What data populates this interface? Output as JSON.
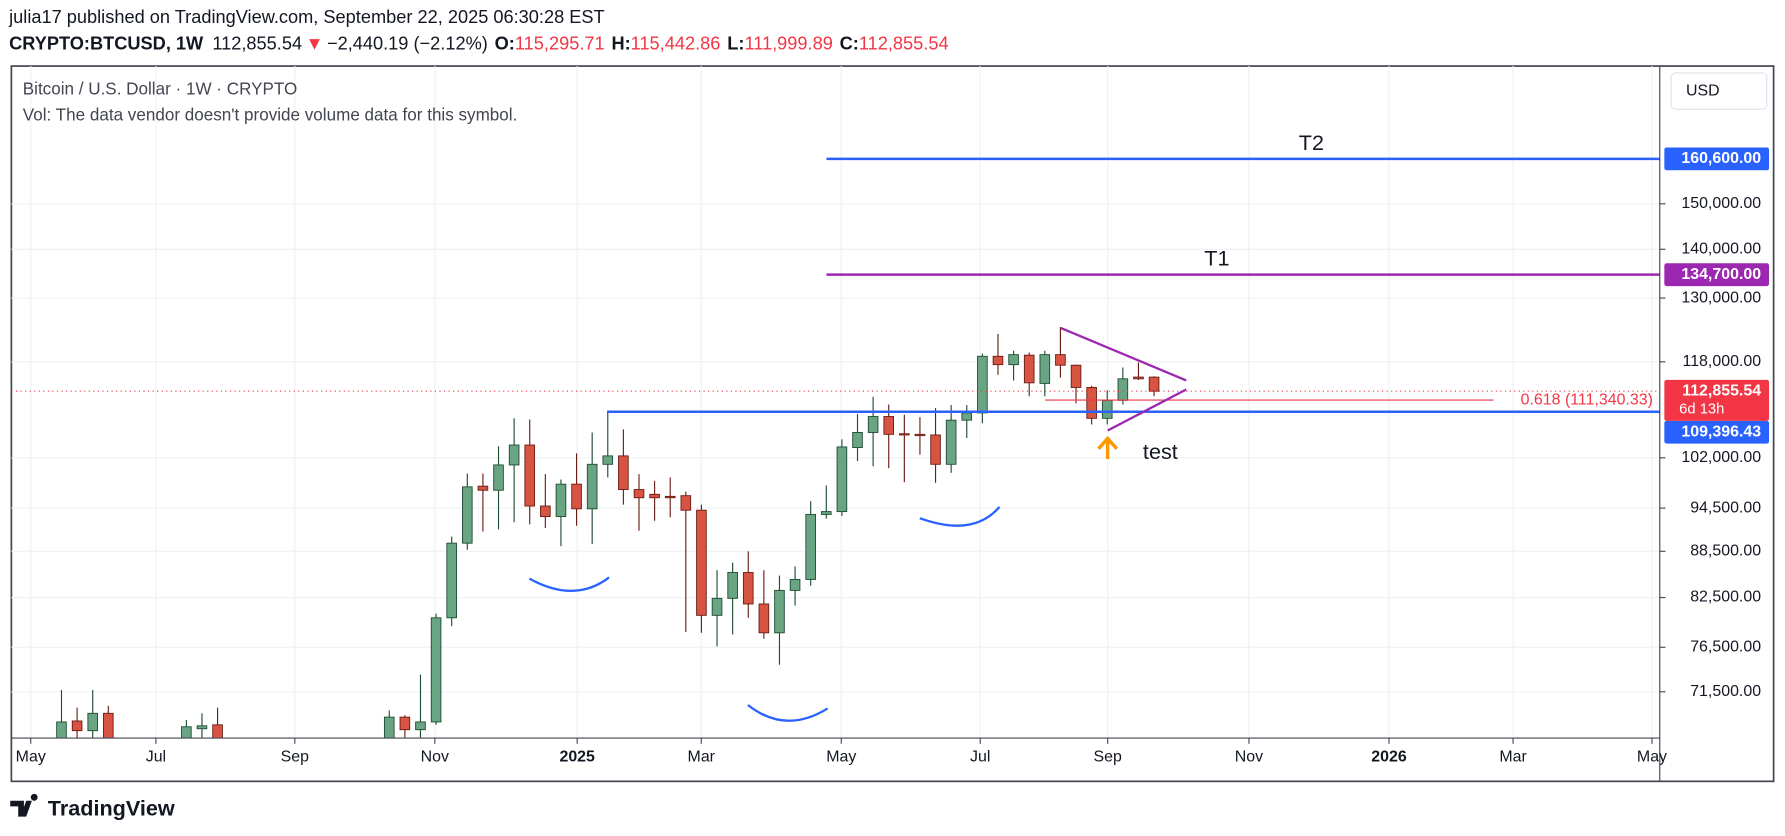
{
  "header": {
    "author_line": "julia17 published on TradingView.com, September 22, 2025 06:30:28 EST",
    "symbol": "CRYPTO:BTCUSD, 1W",
    "price": "112,855.54",
    "change": "−2,440.19 (−2.12%)",
    "ohlc": [
      {
        "key": "O:",
        "value": "115,295.71"
      },
      {
        "key": "H:",
        "value": "115,442.86"
      },
      {
        "key": "L:",
        "value": "111,999.89"
      },
      {
        "key": "C:",
        "value": "112,855.54"
      }
    ]
  },
  "legend": {
    "title": "Bitcoin / U.S. Dollar · 1W · CRYPTO",
    "volume_note": "Vol: The data vendor doesn't provide volume data for this symbol."
  },
  "footer": {
    "brand": "TradingView"
  },
  "chart_data": {
    "type": "candlestick",
    "currency": "USD",
    "log_scale": true,
    "grid": true,
    "up_color": "#6aa583",
    "down_color": "#d75442",
    "x": [
      0,
      1,
      2,
      3,
      8,
      9,
      10,
      21,
      22,
      23,
      24,
      25,
      26,
      27,
      28,
      29,
      30,
      31,
      32,
      33,
      34,
      35,
      36,
      37,
      38,
      39,
      40,
      41,
      42,
      43,
      44,
      45,
      46,
      47,
      48,
      49,
      50,
      51,
      52,
      53,
      54,
      55,
      56,
      57,
      58,
      59,
      60,
      61,
      62,
      63,
      64,
      65,
      66,
      67,
      68,
      69,
      70
    ],
    "open": [
      66000,
      68400,
      67400,
      69200,
      65000,
      67600,
      68000,
      64000,
      68800,
      67500,
      68300,
      80000,
      89600,
      97700,
      97100,
      100900,
      104000,
      94800,
      93300,
      98000,
      94400,
      101000,
      102300,
      97200,
      96500,
      96200,
      96300,
      94200,
      80300,
      82400,
      85700,
      81700,
      78200,
      83400,
      84800,
      93600,
      94000,
      103600,
      106000,
      108600,
      105800,
      105700,
      105600,
      101000,
      108000,
      109200,
      119000,
      117500,
      119200,
      114200,
      119300,
      117400,
      113500,
      108300,
      111300,
      115300,
      115295.71
    ],
    "high": [
      71700,
      69800,
      71700,
      70000,
      68500,
      69200,
      69800,
      69500,
      69000,
      73400,
      80500,
      90500,
      99600,
      99600,
      103800,
      108300,
      108100,
      99500,
      98700,
      102700,
      106000,
      109600,
      106500,
      99500,
      98500,
      99000,
      96900,
      95000,
      86000,
      87000,
      88500,
      86000,
      85300,
      86500,
      95500,
      97800,
      104900,
      109000,
      111900,
      110600,
      108900,
      108500,
      110000,
      110500,
      110500,
      119500,
      123100,
      120000,
      119700,
      120000,
      124400,
      117500,
      113800,
      113000,
      117000,
      117900,
      115442.86
    ],
    "low": [
      65000,
      66500,
      66000,
      62000,
      64000,
      65000,
      63500,
      63000,
      66500,
      66000,
      68000,
      79000,
      88700,
      91200,
      91500,
      92500,
      92200,
      91700,
      89200,
      92000,
      89500,
      99000,
      95000,
      91300,
      92700,
      93200,
      78300,
      78200,
      76600,
      78000,
      80000,
      77500,
      74500,
      81500,
      84000,
      93000,
      93400,
      101500,
      100700,
      100400,
      98300,
      102500,
      98200,
      99700,
      105100,
      107500,
      115700,
      114700,
      112000,
      112000,
      115200,
      110800,
      107300,
      107300,
      110600,
      114800,
      111999.89
    ],
    "close": [
      68300,
      67400,
      69200,
      64000,
      67800,
      67900,
      64500,
      68800,
      67500,
      68300,
      80000,
      89600,
      97600,
      97100,
      100900,
      104000,
      94800,
      93300,
      98000,
      94400,
      101000,
      102300,
      97200,
      96000,
      96000,
      96000,
      94200,
      80300,
      82400,
      85700,
      81700,
      78200,
      83400,
      84800,
      93600,
      94000,
      103700,
      106000,
      108600,
      105700,
      105600,
      105500,
      101000,
      108000,
      109200,
      119000,
      117500,
      119300,
      114300,
      119300,
      117400,
      113500,
      108300,
      111300,
      115000,
      115000,
      112855.54
    ],
    "last_price": {
      "value": 112855.54,
      "label": "112,855.54",
      "countdown": "6d 13h",
      "color": "#f23645"
    },
    "levels": [
      {
        "name": "T2",
        "value": 160600,
        "label": "160,600.00",
        "color": "#2962ff"
      },
      {
        "name": "T1",
        "value": 134700,
        "label": "134,700.00",
        "color": "#9c27b0"
      },
      {
        "value": 109396.43,
        "label": "109,396.43",
        "color": "#2962ff"
      },
      {
        "name": "0.618 (111,340.33)",
        "value": 111340.33,
        "color": "#f23645"
      }
    ],
    "annotation": "test",
    "xlim": [
      -3.21,
      102.4
    ],
    "ylim": [
      66650,
      184900
    ],
    "xticks": [
      {
        "value": -1.97,
        "label": "May"
      },
      {
        "value": 6.05,
        "label": "Jul"
      },
      {
        "value": 14.95,
        "label": "Sep"
      },
      {
        "value": 23.92,
        "label": "Nov"
      },
      {
        "value": 33.04,
        "label": "2025"
      },
      {
        "value": 40.99,
        "label": "Mar"
      },
      {
        "value": 49.96,
        "label": "May"
      },
      {
        "value": 58.86,
        "label": "Jul"
      },
      {
        "value": 67.03,
        "label": "Sep"
      },
      {
        "value": 76.08,
        "label": "Nov"
      },
      {
        "value": 85.05,
        "label": "2026"
      },
      {
        "value": 93.0,
        "label": "Mar"
      },
      {
        "value": 101.9,
        "label": "May"
      }
    ],
    "yticks": [
      {
        "value": 150000,
        "label": "150,000.00"
      },
      {
        "value": 140000,
        "label": "140,000.00"
      },
      {
        "value": 130000,
        "label": "130,000.00"
      },
      {
        "value": 118000,
        "label": "118,000.00"
      },
      {
        "value": 102000,
        "label": "102,000.00"
      },
      {
        "value": 94500,
        "label": "94,500.00"
      },
      {
        "value": 88500,
        "label": "88,500.00"
      },
      {
        "value": 82500,
        "label": "82,500.00"
      },
      {
        "value": 76500,
        "label": "76,500.00"
      },
      {
        "value": 71500,
        "label": "71,500.00"
      }
    ]
  }
}
